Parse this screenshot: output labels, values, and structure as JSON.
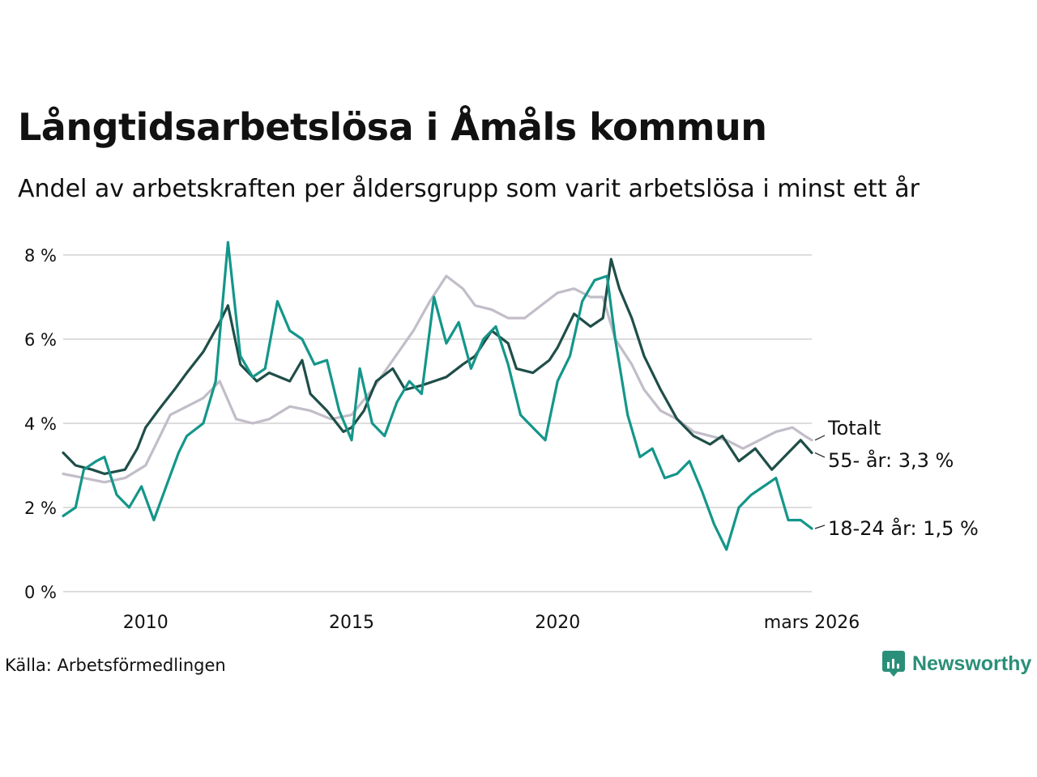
{
  "header": {
    "title": "Långtidsarbetslösa i Åmåls kommun",
    "subtitle": "Andel av arbetskraften per åldersgrupp som varit arbetslösa i minst ett år"
  },
  "footer": {
    "source": "Källa: Arbetsförmedlingen",
    "brand": "Newsworthy"
  },
  "colors": {
    "totalt": "#c2bdc8",
    "age55": "#1f4e48",
    "age18_24": "#14968a",
    "grid": "#dddddd"
  },
  "chart_data": {
    "type": "line",
    "ylim": [
      0,
      8
    ],
    "yticks": [
      0,
      2,
      4,
      6,
      8
    ],
    "ytick_labels": [
      "0 %",
      "2 %",
      "4 %",
      "6 %",
      "8 %"
    ],
    "xlim": [
      2008.0,
      2026.17
    ],
    "xticks": [
      2010,
      2015,
      2020,
      2026.17
    ],
    "xtick_labels": [
      "2010",
      "2015",
      "2020",
      "mars 2026"
    ],
    "series": [
      {
        "key": "totalt",
        "name": "Totalt",
        "label": "Totalt",
        "points": [
          [
            2008.0,
            2.8
          ],
          [
            2008.5,
            2.7
          ],
          [
            2009.0,
            2.6
          ],
          [
            2009.5,
            2.7
          ],
          [
            2010.0,
            3.0
          ],
          [
            2010.3,
            3.6
          ],
          [
            2010.6,
            4.2
          ],
          [
            2011.0,
            4.4
          ],
          [
            2011.4,
            4.6
          ],
          [
            2011.8,
            5.0
          ],
          [
            2012.2,
            4.1
          ],
          [
            2012.6,
            4.0
          ],
          [
            2013.0,
            4.1
          ],
          [
            2013.5,
            4.4
          ],
          [
            2014.0,
            4.3
          ],
          [
            2014.5,
            4.1
          ],
          [
            2015.0,
            4.2
          ],
          [
            2015.5,
            4.8
          ],
          [
            2016.0,
            5.5
          ],
          [
            2016.5,
            6.2
          ],
          [
            2016.9,
            6.9
          ],
          [
            2017.3,
            7.5
          ],
          [
            2017.7,
            7.2
          ],
          [
            2018.0,
            6.8
          ],
          [
            2018.4,
            6.7
          ],
          [
            2018.8,
            6.5
          ],
          [
            2019.2,
            6.5
          ],
          [
            2019.6,
            6.8
          ],
          [
            2020.0,
            7.1
          ],
          [
            2020.4,
            7.2
          ],
          [
            2020.8,
            7.0
          ],
          [
            2021.1,
            7.0
          ],
          [
            2021.4,
            6.0
          ],
          [
            2021.8,
            5.4
          ],
          [
            2022.1,
            4.8
          ],
          [
            2022.5,
            4.3
          ],
          [
            2022.9,
            4.1
          ],
          [
            2023.3,
            3.8
          ],
          [
            2023.7,
            3.7
          ],
          [
            2024.1,
            3.6
          ],
          [
            2024.5,
            3.4
          ],
          [
            2024.9,
            3.6
          ],
          [
            2025.3,
            3.8
          ],
          [
            2025.7,
            3.9
          ],
          [
            2026.0,
            3.7
          ],
          [
            2026.17,
            3.6
          ]
        ]
      },
      {
        "key": "age55",
        "name": "55- år",
        "label": "55- år: 3,3 %",
        "points": [
          [
            2008.0,
            3.3
          ],
          [
            2008.3,
            3.0
          ],
          [
            2008.7,
            2.9
          ],
          [
            2009.0,
            2.8
          ],
          [
            2009.5,
            2.9
          ],
          [
            2009.8,
            3.4
          ],
          [
            2010.0,
            3.9
          ],
          [
            2010.3,
            4.3
          ],
          [
            2010.7,
            4.8
          ],
          [
            2011.0,
            5.2
          ],
          [
            2011.4,
            5.7
          ],
          [
            2011.8,
            6.4
          ],
          [
            2012.0,
            6.8
          ],
          [
            2012.3,
            5.4
          ],
          [
            2012.7,
            5.0
          ],
          [
            2013.0,
            5.2
          ],
          [
            2013.5,
            5.0
          ],
          [
            2013.8,
            5.5
          ],
          [
            2014.0,
            4.7
          ],
          [
            2014.4,
            4.3
          ],
          [
            2014.8,
            3.8
          ],
          [
            2015.0,
            3.9
          ],
          [
            2015.3,
            4.3
          ],
          [
            2015.6,
            5.0
          ],
          [
            2016.0,
            5.3
          ],
          [
            2016.3,
            4.8
          ],
          [
            2016.7,
            4.9
          ],
          [
            2017.0,
            5.0
          ],
          [
            2017.3,
            5.1
          ],
          [
            2017.7,
            5.4
          ],
          [
            2018.0,
            5.6
          ],
          [
            2018.4,
            6.2
          ],
          [
            2018.8,
            5.9
          ],
          [
            2019.0,
            5.3
          ],
          [
            2019.4,
            5.2
          ],
          [
            2019.8,
            5.5
          ],
          [
            2020.0,
            5.8
          ],
          [
            2020.4,
            6.6
          ],
          [
            2020.8,
            6.3
          ],
          [
            2021.1,
            6.5
          ],
          [
            2021.3,
            7.9
          ],
          [
            2021.5,
            7.2
          ],
          [
            2021.8,
            6.5
          ],
          [
            2022.1,
            5.6
          ],
          [
            2022.5,
            4.8
          ],
          [
            2022.9,
            4.1
          ],
          [
            2023.3,
            3.7
          ],
          [
            2023.7,
            3.5
          ],
          [
            2024.0,
            3.7
          ],
          [
            2024.4,
            3.1
          ],
          [
            2024.8,
            3.4
          ],
          [
            2025.2,
            2.9
          ],
          [
            2025.6,
            3.3
          ],
          [
            2025.9,
            3.6
          ],
          [
            2026.17,
            3.3
          ]
        ]
      },
      {
        "key": "age18_24",
        "name": "18-24 år",
        "label": "18-24 år: 1,5 %",
        "points": [
          [
            2008.0,
            1.8
          ],
          [
            2008.3,
            2.0
          ],
          [
            2008.5,
            2.9
          ],
          [
            2008.8,
            3.1
          ],
          [
            2009.0,
            3.2
          ],
          [
            2009.3,
            2.3
          ],
          [
            2009.6,
            2.0
          ],
          [
            2009.9,
            2.5
          ],
          [
            2010.2,
            1.7
          ],
          [
            2010.5,
            2.5
          ],
          [
            2010.8,
            3.3
          ],
          [
            2011.0,
            3.7
          ],
          [
            2011.4,
            4.0
          ],
          [
            2011.7,
            5.0
          ],
          [
            2012.0,
            8.3
          ],
          [
            2012.3,
            5.6
          ],
          [
            2012.6,
            5.1
          ],
          [
            2012.9,
            5.3
          ],
          [
            2013.2,
            6.9
          ],
          [
            2013.5,
            6.2
          ],
          [
            2013.8,
            6.0
          ],
          [
            2014.1,
            5.4
          ],
          [
            2014.4,
            5.5
          ],
          [
            2014.7,
            4.3
          ],
          [
            2015.0,
            3.6
          ],
          [
            2015.2,
            5.3
          ],
          [
            2015.5,
            4.0
          ],
          [
            2015.8,
            3.7
          ],
          [
            2016.1,
            4.5
          ],
          [
            2016.4,
            5.0
          ],
          [
            2016.7,
            4.7
          ],
          [
            2017.0,
            7.0
          ],
          [
            2017.3,
            5.9
          ],
          [
            2017.6,
            6.4
          ],
          [
            2017.9,
            5.3
          ],
          [
            2018.2,
            6.0
          ],
          [
            2018.5,
            6.3
          ],
          [
            2018.8,
            5.4
          ],
          [
            2019.1,
            4.2
          ],
          [
            2019.4,
            3.9
          ],
          [
            2019.7,
            3.6
          ],
          [
            2020.0,
            5.0
          ],
          [
            2020.3,
            5.6
          ],
          [
            2020.6,
            6.9
          ],
          [
            2020.9,
            7.4
          ],
          [
            2021.2,
            7.5
          ],
          [
            2021.4,
            6.0
          ],
          [
            2021.7,
            4.2
          ],
          [
            2022.0,
            3.2
          ],
          [
            2022.3,
            3.4
          ],
          [
            2022.6,
            2.7
          ],
          [
            2022.9,
            2.8
          ],
          [
            2023.2,
            3.1
          ],
          [
            2023.5,
            2.4
          ],
          [
            2023.8,
            1.6
          ],
          [
            2024.1,
            1.0
          ],
          [
            2024.4,
            2.0
          ],
          [
            2024.7,
            2.3
          ],
          [
            2025.0,
            2.5
          ],
          [
            2025.3,
            2.7
          ],
          [
            2025.6,
            1.7
          ],
          [
            2025.9,
            1.7
          ],
          [
            2026.17,
            1.5
          ]
        ]
      }
    ]
  }
}
